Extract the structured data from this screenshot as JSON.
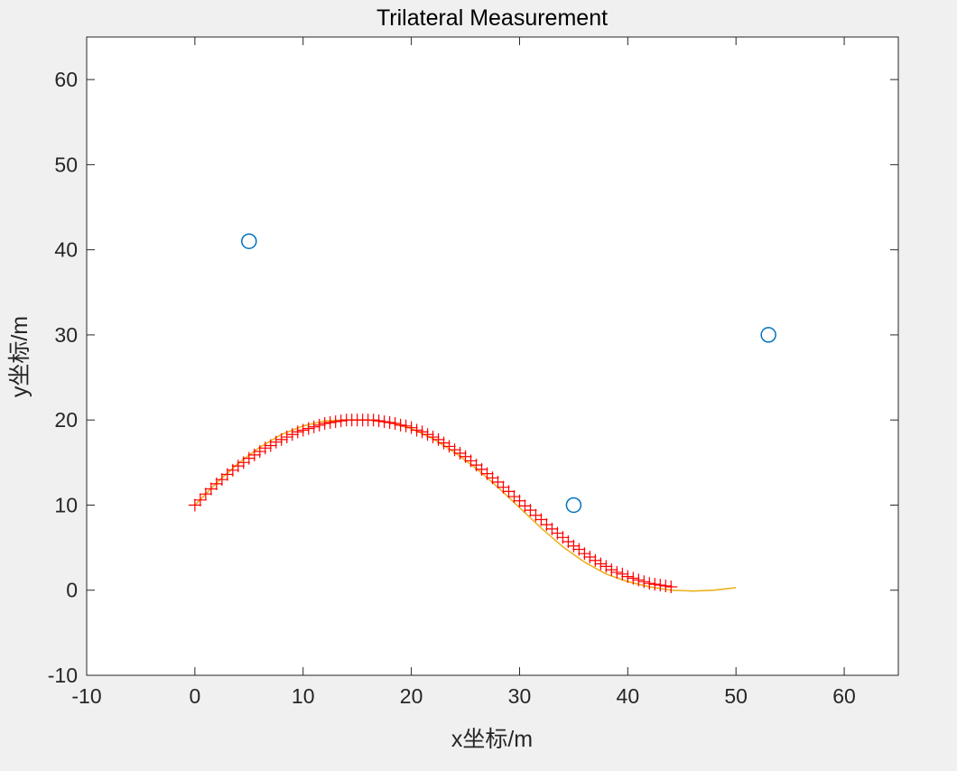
{
  "chart_data": {
    "type": "line",
    "title": "Trilateral Measurement",
    "xlabel": "x坐标/m",
    "ylabel": "y坐标/m",
    "xlim": [
      -10,
      65
    ],
    "ylim": [
      -10,
      65
    ],
    "xticks": [
      -10,
      0,
      10,
      20,
      30,
      40,
      50,
      60
    ],
    "yticks": [
      -10,
      0,
      10,
      20,
      30,
      40,
      50,
      60
    ],
    "xtick_labels": [
      "-10",
      "0",
      "10",
      "20",
      "30",
      "40",
      "50",
      "60"
    ],
    "ytick_labels": [
      "-10",
      "0",
      "10",
      "20",
      "30",
      "40",
      "50",
      "60"
    ],
    "grid": false,
    "series": [
      {
        "marker": "circle",
        "color": "#0072bd",
        "points": [
          [
            5,
            41
          ],
          [
            35,
            10
          ],
          [
            53,
            30
          ]
        ]
      },
      {
        "marker": "none",
        "line": "solid",
        "color": "#edb120",
        "points": [
          [
            0,
            10
          ],
          [
            2,
            12.6
          ],
          [
            4,
            14.9
          ],
          [
            6,
            16.8
          ],
          [
            8,
            18.3
          ],
          [
            10,
            19.3
          ],
          [
            12,
            19.9
          ],
          [
            14,
            20
          ],
          [
            16,
            20
          ],
          [
            18,
            19.7
          ],
          [
            20,
            19
          ],
          [
            22,
            17.8
          ],
          [
            24,
            16.2
          ],
          [
            26,
            14.3
          ],
          [
            28,
            12.1
          ],
          [
            30,
            9.7
          ],
          [
            32,
            7.3
          ],
          [
            34,
            5.1
          ],
          [
            36,
            3.3
          ],
          [
            38,
            1.9
          ],
          [
            40,
            1
          ],
          [
            42,
            0.4
          ],
          [
            44,
            0
          ],
          [
            46,
            -0.1
          ],
          [
            48,
            0
          ],
          [
            50,
            0.3
          ]
        ]
      },
      {
        "marker": "plus",
        "color": "#ff0000",
        "points": [
          [
            0,
            10
          ],
          [
            0.5,
            10.6
          ],
          [
            1,
            11.3
          ],
          [
            1.5,
            11.9
          ],
          [
            2,
            12.5
          ],
          [
            2.5,
            13
          ],
          [
            3,
            13.6
          ],
          [
            3.5,
            14.1
          ],
          [
            4,
            14.6
          ],
          [
            4.5,
            15
          ],
          [
            5,
            15.5
          ],
          [
            5.5,
            15.9
          ],
          [
            6,
            16.3
          ],
          [
            6.5,
            16.7
          ],
          [
            7,
            17
          ],
          [
            7.5,
            17.4
          ],
          [
            8,
            17.7
          ],
          [
            8.5,
            18
          ],
          [
            9,
            18.3
          ],
          [
            9.5,
            18.6
          ],
          [
            10,
            18.8
          ],
          [
            10.5,
            19
          ],
          [
            11,
            19.2
          ],
          [
            11.5,
            19.4
          ],
          [
            12,
            19.6
          ],
          [
            12.5,
            19.7
          ],
          [
            13,
            19.8
          ],
          [
            13.5,
            19.9
          ],
          [
            14,
            20
          ],
          [
            14.5,
            20
          ],
          [
            15,
            20
          ],
          [
            15.5,
            20
          ],
          [
            16,
            20
          ],
          [
            16.5,
            20
          ],
          [
            17,
            19.9
          ],
          [
            17.5,
            19.8
          ],
          [
            18,
            19.7
          ],
          [
            18.5,
            19.6
          ],
          [
            19,
            19.4
          ],
          [
            19.5,
            19.3
          ],
          [
            20,
            19.1
          ],
          [
            20.5,
            18.8
          ],
          [
            21,
            18.6
          ],
          [
            21.5,
            18.3
          ],
          [
            22,
            18
          ],
          [
            22.5,
            17.7
          ],
          [
            23,
            17.3
          ],
          [
            23.5,
            16.9
          ],
          [
            24,
            16.5
          ],
          [
            24.5,
            16.1
          ],
          [
            25,
            15.7
          ],
          [
            25.5,
            15.2
          ],
          [
            26,
            14.7
          ],
          [
            26.5,
            14.2
          ],
          [
            27,
            13.7
          ],
          [
            27.5,
            13.2
          ],
          [
            28,
            12.7
          ],
          [
            28.5,
            12.1
          ],
          [
            29,
            11.6
          ],
          [
            29.5,
            11
          ],
          [
            30,
            10.5
          ],
          [
            30.5,
            9.9
          ],
          [
            31,
            9.4
          ],
          [
            31.5,
            8.8
          ],
          [
            32,
            8.3
          ],
          [
            32.5,
            7.7
          ],
          [
            33,
            7.2
          ],
          [
            33.5,
            6.7
          ],
          [
            34,
            6.2
          ],
          [
            34.5,
            5.7
          ],
          [
            35,
            5.2
          ],
          [
            35.5,
            4.8
          ],
          [
            36,
            4.3
          ],
          [
            36.5,
            3.9
          ],
          [
            37,
            3.5
          ],
          [
            37.5,
            3.1
          ],
          [
            38,
            2.8
          ],
          [
            38.5,
            2.4
          ],
          [
            39,
            2.1
          ],
          [
            39.5,
            1.9
          ],
          [
            40,
            1.6
          ],
          [
            40.5,
            1.4
          ],
          [
            41,
            1.2
          ],
          [
            41.5,
            1
          ],
          [
            42,
            0.8
          ],
          [
            42.5,
            0.7
          ],
          [
            43,
            0.6
          ],
          [
            43.5,
            0.5
          ],
          [
            44,
            0.4
          ]
        ]
      }
    ]
  }
}
